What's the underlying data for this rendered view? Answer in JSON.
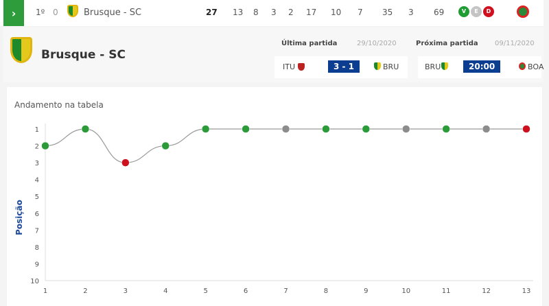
{
  "row": {
    "position": "1º",
    "variation": "0",
    "team": "Brusque - SC",
    "stats": [
      "27",
      "13",
      "8",
      "3",
      "2",
      "17",
      "10",
      "7",
      "35",
      "3",
      "69"
    ],
    "form": [
      {
        "label": "V",
        "color": "#1f9d34"
      },
      {
        "label": "E",
        "color": "#c4c4c4"
      },
      {
        "label": "D",
        "color": "#d0101e"
      }
    ]
  },
  "header": {
    "team": "Brusque - SC",
    "last_match": {
      "label": "Última partida",
      "date": "29/10/2020",
      "home": "ITU",
      "score": "3 - 1",
      "away": "BRU"
    },
    "next_match": {
      "label": "Próxima partida",
      "date": "09/11/2020",
      "home": "BRU",
      "time": "20:00",
      "away": "BOA"
    }
  },
  "chart_data": {
    "type": "line",
    "title": "Andamento na tabela",
    "ylabel": "Posição",
    "xlabel": "",
    "x": [
      1,
      2,
      3,
      4,
      5,
      6,
      7,
      8,
      9,
      10,
      11,
      12,
      13
    ],
    "y": [
      2,
      1,
      3,
      2,
      1,
      1,
      1,
      1,
      1,
      1,
      1,
      1,
      1
    ],
    "results": [
      "V",
      "V",
      "D",
      "V",
      "V",
      "V",
      "E",
      "V",
      "V",
      "E",
      "V",
      "E",
      "D"
    ],
    "result_colors": {
      "V": "#2b9a38",
      "E": "#8c8c8c",
      "D": "#cc1020"
    },
    "ylim": [
      10,
      1
    ],
    "yticks": [
      1,
      2,
      3,
      4,
      5,
      6,
      7,
      8,
      9,
      10
    ],
    "xlim": [
      1,
      13
    ],
    "y_inverted": true,
    "grid": false,
    "legend": "none"
  }
}
